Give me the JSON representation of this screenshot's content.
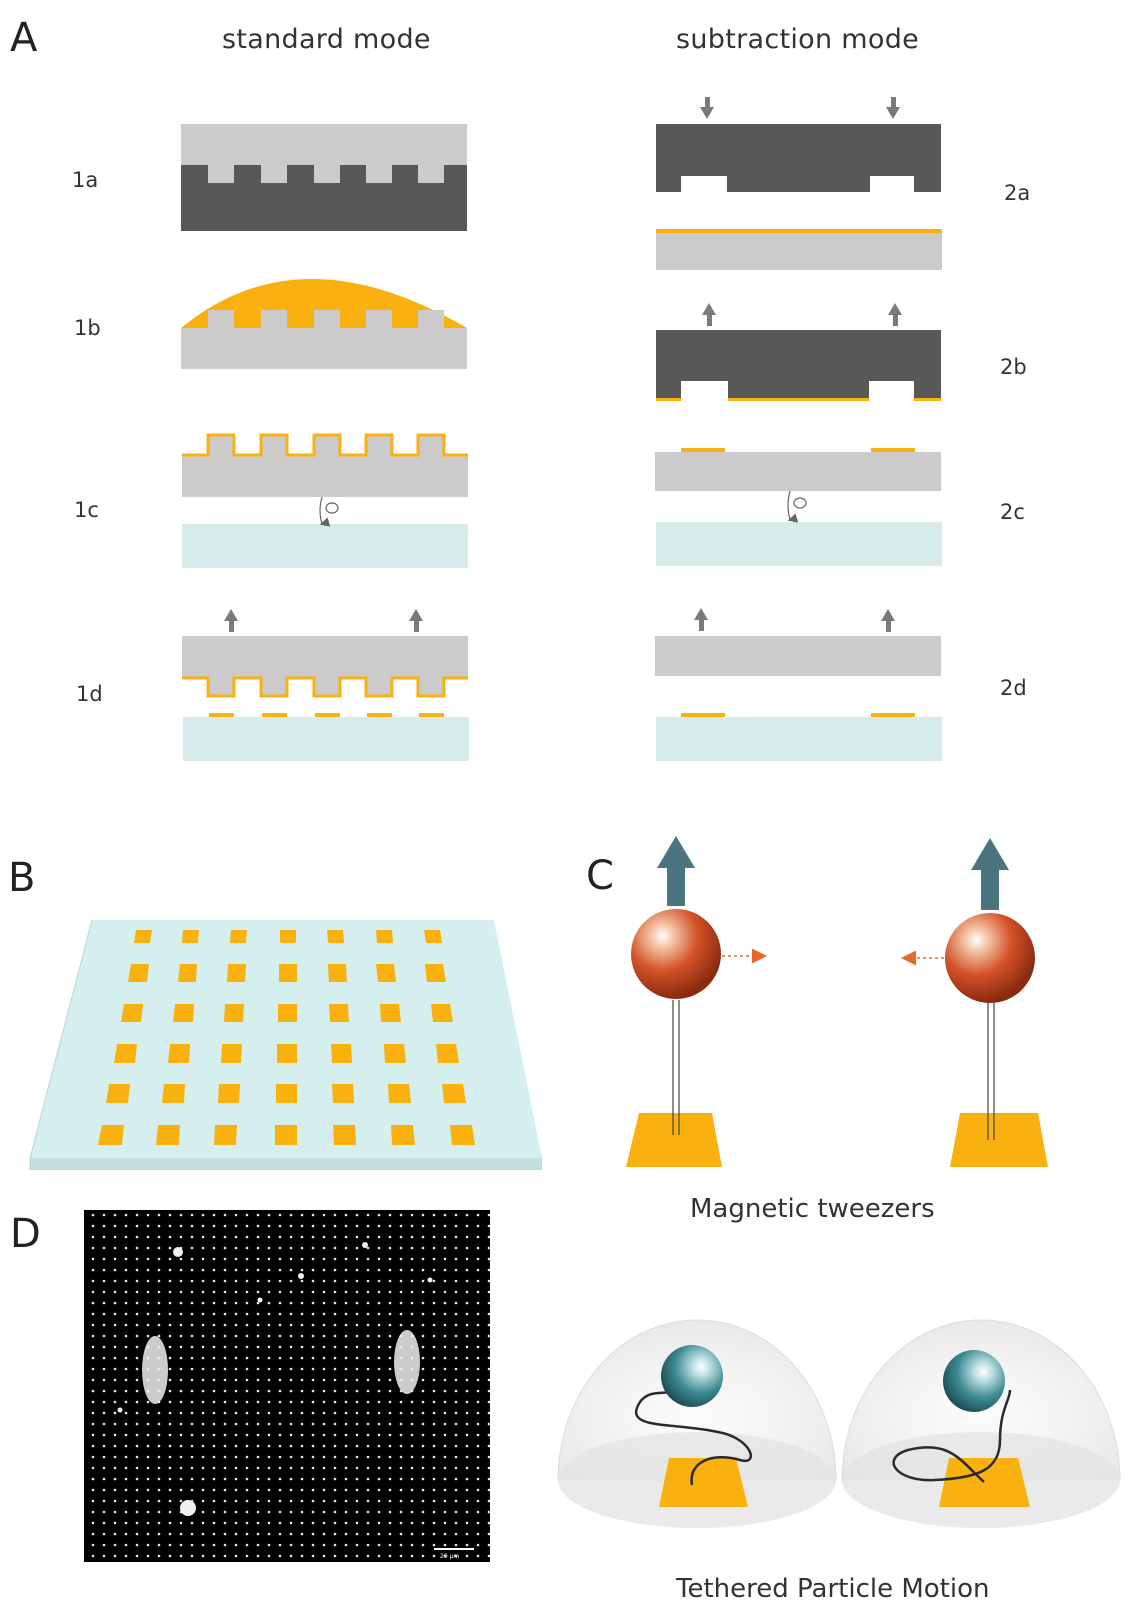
{
  "panels": {
    "a": {
      "letter": "A",
      "standard_title": "standard mode",
      "subtraction_title": "subtraction mode",
      "steps_standard": [
        "1a",
        "1b",
        "1c",
        "1d"
      ],
      "steps_subtraction": [
        "2a",
        "2b",
        "2c",
        "2d"
      ]
    },
    "b": {
      "letter": "B"
    },
    "c": {
      "letter": "C",
      "caption": "Magnetic tweezers"
    },
    "d": {
      "letter": "D",
      "scale_bar": "20 µm"
    },
    "tpm": {
      "caption": "Tethered Particle Motion"
    }
  },
  "colors": {
    "stamp_dark": "#585858",
    "stamp_light": "#cccaca",
    "gold": "#f8b10f",
    "glass": "#d7ecea",
    "glass_b": "#d5efef",
    "arrow_gray": "#7a7a7a",
    "arrow_teal": "#4a7480",
    "bead_red": "#d4532a",
    "bead_teal": "#3f8b93"
  }
}
